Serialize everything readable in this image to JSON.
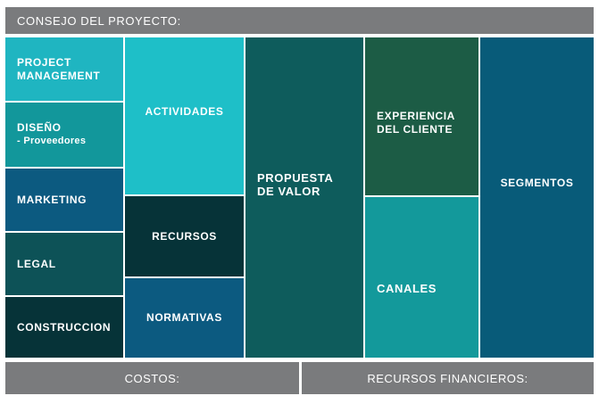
{
  "header": {
    "title": "CONSEJO DEL PROYECTO:"
  },
  "blocks": {
    "project_management": {
      "line1": "PROJECT",
      "line2": "MANAGEMENT",
      "color": "#1fb5c1"
    },
    "diseno": {
      "line1": "DISEÑO",
      "line2": "- Proveedores",
      "color": "#12979b"
    },
    "marketing": {
      "label": "MARKETING",
      "color": "#0c5a80"
    },
    "legal": {
      "label": "LEGAL",
      "color": "#0d5257"
    },
    "construccion": {
      "label": "CONSTRUCCION",
      "color": "#063338"
    },
    "actividades": {
      "label": "ACTIVIDADES",
      "color": "#1ebfc8"
    },
    "recursos": {
      "label": "RECURSOS",
      "color": "#063338"
    },
    "normativas": {
      "label": "NORMATIVAS",
      "color": "#0c5a80"
    },
    "propuesta": {
      "line1": "PROPUESTA",
      "line2": "DE VALOR",
      "color": "#0e5c5c"
    },
    "experiencia": {
      "line1": "EXPERIENCIA",
      "line2": "DEL CLIENTE",
      "color": "#1c5c45"
    },
    "canales": {
      "label": "CANALES",
      "color": "#13999b"
    },
    "segmentos": {
      "label": "SEGMENTOS",
      "color": "#085b79"
    }
  },
  "footer": {
    "costos": "COSTOS:",
    "recursos_financieros": "RECURSOS FINANCIEROS:"
  }
}
